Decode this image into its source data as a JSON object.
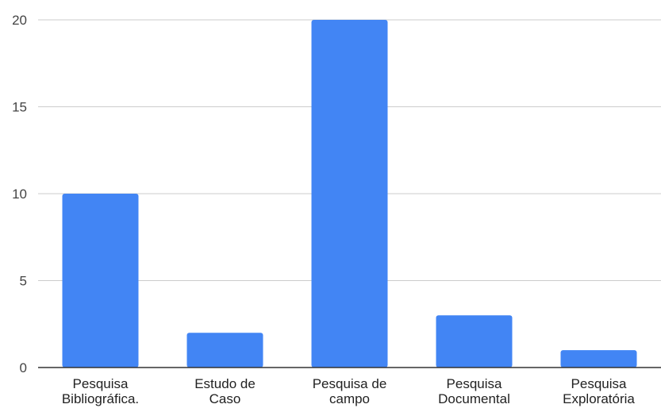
{
  "chart_data": {
    "type": "bar",
    "title": "",
    "xlabel": "",
    "ylabel": "",
    "categories": [
      [
        "Pesquisa",
        "Bibliográfica."
      ],
      [
        "Estudo de",
        "Caso"
      ],
      [
        "Pesquisa de",
        "campo"
      ],
      [
        "Pesquisa",
        "Documental"
      ],
      [
        "Pesquisa",
        "Exploratória"
      ]
    ],
    "values": [
      10,
      2,
      20,
      3,
      1
    ],
    "ylim": [
      0,
      20
    ],
    "yticks": [
      "0",
      "5",
      "10",
      "15",
      "20"
    ],
    "grid": true,
    "legend": "none",
    "bar_color": "#4285f4",
    "grid_color": "#cccccc",
    "axis_color": "#333333"
  }
}
